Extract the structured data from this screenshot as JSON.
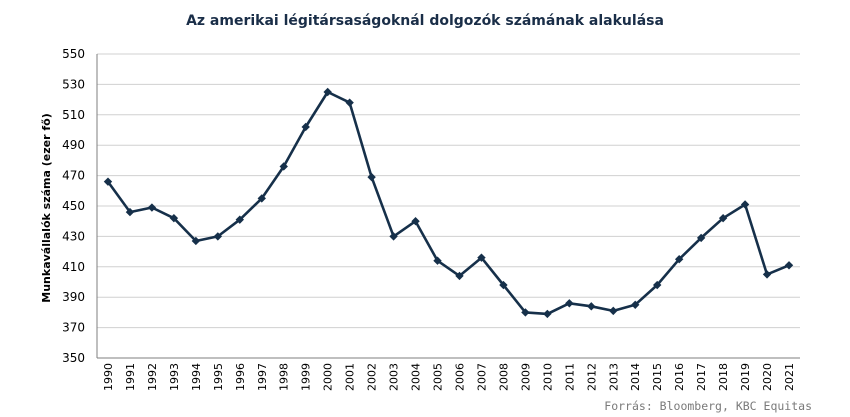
{
  "chart_data": {
    "type": "line",
    "title": "Az amerikai légitársaságoknál dolgozók számának alakulása",
    "ylabel": "Munkavállalók száma (ezer fő)",
    "xlabel": "",
    "source": "Forrás: Bloomberg, KBC Equitas",
    "ylim": [
      350,
      550
    ],
    "yticks": [
      350,
      370,
      390,
      410,
      430,
      450,
      470,
      490,
      510,
      530,
      550
    ],
    "grid": true,
    "categories": [
      "1990",
      "1991",
      "1992",
      "1993",
      "1994",
      "1995",
      "1996",
      "1997",
      "1998",
      "1999",
      "2000",
      "2001",
      "2002",
      "2003",
      "2004",
      "2005",
      "2006",
      "2007",
      "2008",
      "2009",
      "2010",
      "2011",
      "2012",
      "2013",
      "2014",
      "2015",
      "2016",
      "2017",
      "2018",
      "2019",
      "2020",
      "2021"
    ],
    "series": [
      {
        "values": [
          466,
          446,
          449,
          442,
          427,
          430,
          441,
          455,
          476,
          502,
          525,
          518,
          469,
          430,
          440,
          414,
          404,
          416,
          398,
          380,
          379,
          386,
          384,
          381,
          385,
          398,
          415,
          429,
          442,
          451,
          405,
          411
        ],
        "color": "#16304a"
      }
    ]
  }
}
